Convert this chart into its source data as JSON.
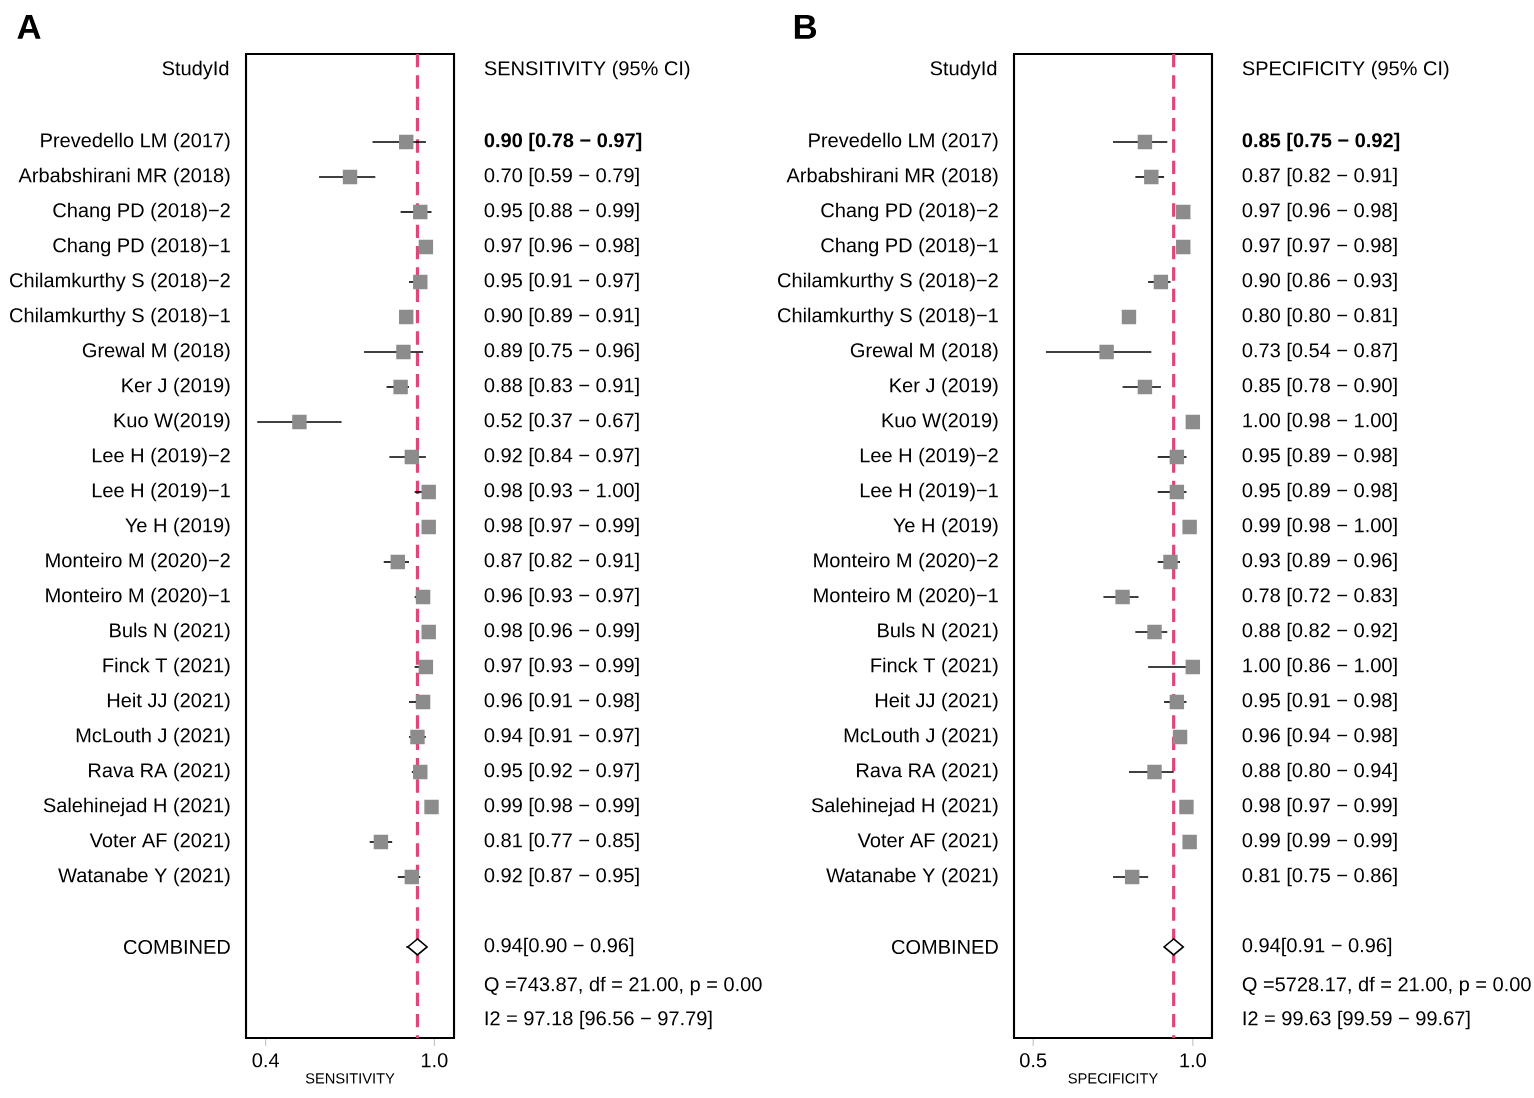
{
  "chart_data": [
    {
      "type": "scatter",
      "orientation": "horizontal",
      "title": "A",
      "xlabel": "SENSITIVITY",
      "xlim": [
        0.33,
        1.07
      ],
      "xticks": [
        {
          "value": 0.4,
          "label": "0.4"
        },
        {
          "value": 1.0,
          "label": "1.0"
        }
      ],
      "categories": [
        "Prevedello LM (2017)",
        "Arbabshirani MR (2018)",
        "Chang PD (2018)−2",
        "Chang PD (2018)−1",
        "Chilamkurthy S (2018)−2",
        "Chilamkurthy S (2018)−1",
        "Grewal M (2018)",
        "Ker J (2019)",
        "Kuo W(2019)",
        "Lee H (2019)−2",
        "Lee H (2019)−1",
        "Ye H (2019)",
        "Monteiro M (2020)−2",
        "Monteiro M (2020)−1",
        "Buls N (2021)",
        "Finck T (2021)",
        "Heit JJ (2021)",
        "McLouth  J (2021)",
        "Rava RA (2021)",
        "Salehinejad H (2021)",
        "Voter AF (2021)",
        "Watanabe Y (2021)",
        null,
        "COMBINED"
      ],
      "series": [
        {
          "type": "scatter",
          "marker": "square",
          "color": "#8c8c8c",
          "values": [
            0.9,
            0.7,
            0.95,
            0.97,
            0.95,
            0.9,
            0.89,
            0.88,
            0.52,
            0.92,
            0.98,
            0.98,
            0.87,
            0.96,
            0.98,
            0.97,
            0.96,
            0.94,
            0.95,
            0.99,
            0.81,
            0.92,
            null,
            null
          ],
          "errors": [
            [
              0.78,
              0.97
            ],
            [
              0.59,
              0.79
            ],
            [
              0.88,
              0.99
            ],
            [
              0.96,
              0.98
            ],
            [
              0.91,
              0.97
            ],
            [
              0.89,
              0.91
            ],
            [
              0.75,
              0.96
            ],
            [
              0.83,
              0.91
            ],
            [
              0.37,
              0.67
            ],
            [
              0.84,
              0.97
            ],
            [
              0.93,
              1.0
            ],
            [
              0.97,
              0.99
            ],
            [
              0.82,
              0.91
            ],
            [
              0.93,
              0.97
            ],
            [
              0.96,
              0.99
            ],
            [
              0.93,
              0.99
            ],
            [
              0.91,
              0.98
            ],
            [
              0.91,
              0.97
            ],
            [
              0.92,
              0.97
            ],
            [
              0.98,
              0.99
            ],
            [
              0.77,
              0.85
            ],
            [
              0.87,
              0.95
            ],
            null,
            null
          ],
          "value_labels": [
            "**0.90 [0.78 − 0.97]**",
            "0.70 [0.59 − 0.79]",
            "0.95 [0.88 − 0.99]",
            "0.97 [0.96 − 0.98]",
            "0.95 [0.91 − 0.97]",
            "0.90 [0.89 − 0.91]",
            "0.89 [0.75 − 0.96]",
            "0.88 [0.83 − 0.91]",
            "0.52 [0.37 − 0.67]",
            "0.92 [0.84 − 0.97]",
            "0.98 [0.93 − 1.00]",
            "0.98 [0.97 − 0.99]",
            "0.87 [0.82 − 0.91]",
            "0.96 [0.93 − 0.97]",
            "0.98 [0.96 − 0.99]",
            "0.97 [0.93 − 0.99]",
            "0.96 [0.91 − 0.98]",
            "0.94 [0.91 − 0.97]",
            "0.95 [0.92 − 0.97]",
            "0.99 [0.98 − 0.99]",
            "0.81 [0.77 − 0.85]",
            "0.92 [0.87 − 0.95]",
            null,
            null
          ]
        },
        {
          "type": "scatter",
          "marker": "diamond",
          "color": "#ffffff",
          "values": [
            null,
            null,
            null,
            null,
            null,
            null,
            null,
            null,
            null,
            null,
            null,
            null,
            null,
            null,
            null,
            null,
            null,
            null,
            null,
            null,
            null,
            null,
            null,
            0.94
          ],
          "errors": [
            null,
            null,
            null,
            null,
            null,
            null,
            null,
            null,
            null,
            null,
            null,
            null,
            null,
            null,
            null,
            null,
            null,
            null,
            null,
            null,
            null,
            null,
            null,
            [
              0.9,
              0.96
            ]
          ],
          "value_labels": [
            null,
            null,
            null,
            null,
            null,
            null,
            null,
            null,
            null,
            null,
            null,
            null,
            null,
            null,
            null,
            null,
            null,
            null,
            null,
            null,
            null,
            null,
            null,
            "0.94[0.90 − 0.96]"
          ]
        }
      ],
      "ref_lines": [
        {
          "axis": "x",
          "value": 0.94,
          "color": "#e0457b",
          "line_style": "dashed"
        }
      ],
      "annotations": [
        "StudyId",
        "SENSITIVITY (95% CI)",
        "Q =743.87, df = 21.00, p =  0.00",
        "I2 = 97.18 [96.56 − 97.79]"
      ]
    },
    {
      "type": "scatter",
      "orientation": "horizontal",
      "title": "B",
      "xlabel": "SPECIFICITY",
      "xlim": [
        0.44,
        1.06
      ],
      "xticks": [
        {
          "value": 0.5,
          "label": "0.5"
        },
        {
          "value": 1.0,
          "label": "1.0"
        }
      ],
      "categories": [
        "Prevedello LM (2017)",
        "Arbabshirani MR (2018)",
        "Chang PD (2018)−2",
        "Chang PD (2018)−1",
        "Chilamkurthy S (2018)−2",
        "Chilamkurthy S (2018)−1",
        "Grewal M (2018)",
        "Ker J (2019)",
        "Kuo W(2019)",
        "Lee H (2019)−2",
        "Lee H (2019)−1",
        "Ye H (2019)",
        "Monteiro M (2020)−2",
        "Monteiro M (2020)−1",
        "Buls N (2021)",
        "Finck T (2021)",
        "Heit JJ (2021)",
        "McLouth  J (2021)",
        "Rava RA (2021)",
        "Salehinejad H (2021)",
        "Voter AF (2021)",
        "Watanabe Y (2021)",
        null,
        "COMBINED"
      ],
      "series": [
        {
          "type": "scatter",
          "marker": "square",
          "color": "#8c8c8c",
          "values": [
            0.85,
            0.87,
            0.97,
            0.97,
            0.9,
            0.8,
            0.73,
            0.85,
            1.0,
            0.95,
            0.95,
            0.99,
            0.93,
            0.78,
            0.88,
            1.0,
            0.95,
            0.96,
            0.88,
            0.98,
            0.99,
            0.81,
            null,
            null
          ],
          "errors": [
            [
              0.75,
              0.92
            ],
            [
              0.82,
              0.91
            ],
            [
              0.96,
              0.98
            ],
            [
              0.97,
              0.98
            ],
            [
              0.86,
              0.93
            ],
            [
              0.8,
              0.81
            ],
            [
              0.54,
              0.87
            ],
            [
              0.78,
              0.9
            ],
            [
              0.98,
              1.0
            ],
            [
              0.89,
              0.98
            ],
            [
              0.89,
              0.98
            ],
            [
              0.98,
              1.0
            ],
            [
              0.89,
              0.96
            ],
            [
              0.72,
              0.83
            ],
            [
              0.82,
              0.92
            ],
            [
              0.86,
              1.0
            ],
            [
              0.91,
              0.98
            ],
            [
              0.94,
              0.98
            ],
            [
              0.8,
              0.94
            ],
            [
              0.97,
              0.99
            ],
            [
              0.99,
              0.99
            ],
            [
              0.75,
              0.86
            ],
            null,
            null
          ],
          "value_labels": [
            "**0.85 [0.75 − 0.92]**",
            "0.87 [0.82 − 0.91]",
            "0.97 [0.96 − 0.98]",
            "0.97 [0.97 − 0.98]",
            "0.90 [0.86 − 0.93]",
            "0.80 [0.80 − 0.81]",
            "0.73 [0.54 − 0.87]",
            "0.85 [0.78 − 0.90]",
            "1.00 [0.98 − 1.00]",
            "0.95 [0.89 − 0.98]",
            "0.95 [0.89 − 0.98]",
            "0.99 [0.98 − 1.00]",
            "0.93 [0.89 − 0.96]",
            "0.78 [0.72 − 0.83]",
            "0.88 [0.82 − 0.92]",
            "1.00 [0.86 − 1.00]",
            "0.95 [0.91 − 0.98]",
            "0.96 [0.94 − 0.98]",
            "0.88 [0.80 − 0.94]",
            "0.98 [0.97 − 0.99]",
            "0.99 [0.99 − 0.99]",
            "0.81 [0.75 − 0.86]",
            null,
            null
          ]
        },
        {
          "type": "scatter",
          "marker": "diamond",
          "color": "#ffffff",
          "values": [
            null,
            null,
            null,
            null,
            null,
            null,
            null,
            null,
            null,
            null,
            null,
            null,
            null,
            null,
            null,
            null,
            null,
            null,
            null,
            null,
            null,
            null,
            null,
            0.94
          ],
          "errors": [
            null,
            null,
            null,
            null,
            null,
            null,
            null,
            null,
            null,
            null,
            null,
            null,
            null,
            null,
            null,
            null,
            null,
            null,
            null,
            null,
            null,
            null,
            null,
            [
              0.91,
              0.96
            ]
          ],
          "value_labels": [
            null,
            null,
            null,
            null,
            null,
            null,
            null,
            null,
            null,
            null,
            null,
            null,
            null,
            null,
            null,
            null,
            null,
            null,
            null,
            null,
            null,
            null,
            null,
            "0.94[0.91 − 0.96]"
          ]
        }
      ],
      "ref_lines": [
        {
          "axis": "x",
          "value": 0.94,
          "color": "#e0457b",
          "line_style": "dashed"
        }
      ],
      "annotations": [
        "StudyId",
        "SPECIFICITY (95% CI)",
        "Q =5728.17, df = 21.00, p =  0.00",
        "I2 = 99.63 [99.59 − 99.67]"
      ]
    }
  ]
}
